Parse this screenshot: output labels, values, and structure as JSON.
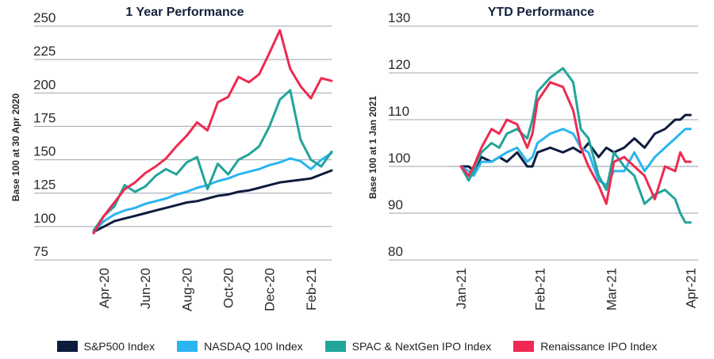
{
  "colors": {
    "sp500": "#0d1b3e",
    "nasdaq": "#2bb5f0",
    "spac": "#22a49b",
    "renaissance": "#ee2a52",
    "grid": "#9aa3ad"
  },
  "legend": [
    {
      "label": "S&P500 Index",
      "color": "#0d1b3e"
    },
    {
      "label": "NASDAQ 100 Index",
      "color": "#2bb5f0"
    },
    {
      "label": "SPAC & NextGen IPO Index",
      "color": "#22a49b"
    },
    {
      "label": "Renaissance IPO Index",
      "color": "#ee2a52"
    }
  ],
  "chart_data": [
    {
      "type": "line",
      "title": "1 Year Performance",
      "ylabel": "Base 100 at 30 Apr 2020",
      "xlabel": "",
      "ylim": [
        75,
        250
      ],
      "yticks": [
        75,
        100,
        125,
        150,
        175,
        200,
        225,
        250
      ],
      "xticks": [
        "Apr-20",
        "Jun-20",
        "Aug-20",
        "Oct-20",
        "Dec-20",
        "Feb-21"
      ],
      "xtick_pos": [
        0.5,
        2.5,
        4.5,
        6.5,
        8.5,
        10.5
      ],
      "xlim": [
        0,
        11.5
      ],
      "grid": true,
      "series": [
        {
          "name": "S&P500 Index",
          "x": [
            0,
            0.5,
            1,
            1.5,
            2,
            2.5,
            3,
            3.5,
            4,
            4.5,
            5,
            5.5,
            6,
            6.5,
            7,
            7.5,
            8,
            8.5,
            9,
            9.5,
            10,
            10.5,
            11,
            11.5
          ],
          "values": [
            96,
            100,
            104,
            106,
            108,
            110,
            112,
            114,
            116,
            118,
            119,
            121,
            123,
            124,
            126,
            127,
            129,
            131,
            133,
            134,
            135,
            136,
            139,
            142
          ]
        },
        {
          "name": "NASDAQ 100 Index",
          "x": [
            0,
            0.5,
            1,
            1.5,
            2,
            2.5,
            3,
            3.5,
            4,
            4.5,
            5,
            5.5,
            6,
            6.5,
            7,
            7.5,
            8,
            8.5,
            9,
            9.5,
            10,
            10.5,
            11,
            11.5
          ],
          "values": [
            96,
            104,
            109,
            112,
            114,
            117,
            119,
            121,
            124,
            126,
            129,
            131,
            134,
            136,
            139,
            141,
            143,
            146,
            148,
            151,
            149,
            143,
            150,
            155
          ]
        },
        {
          "name": "SPAC & NextGen IPO Index",
          "x": [
            0,
            0.5,
            1,
            1.5,
            2,
            2.5,
            3,
            3.5,
            4,
            4.5,
            5,
            5.5,
            6,
            6.5,
            7,
            7.5,
            8,
            8.5,
            9,
            9.5,
            10,
            10.5,
            11,
            11.5
          ],
          "values": [
            97,
            108,
            115,
            131,
            126,
            130,
            138,
            143,
            139,
            148,
            152,
            128,
            147,
            139,
            150,
            154,
            160,
            175,
            195,
            202,
            165,
            150,
            145,
            156
          ]
        },
        {
          "name": "Renaissance IPO Index",
          "x": [
            0,
            0.5,
            1,
            1.5,
            2,
            2.5,
            3,
            3.5,
            4,
            4.5,
            5,
            5.5,
            6,
            6.5,
            7,
            7.5,
            8,
            8.5,
            9,
            9.5,
            10,
            10.5,
            11,
            11.5
          ],
          "values": [
            95,
            108,
            118,
            128,
            133,
            140,
            145,
            151,
            160,
            168,
            178,
            172,
            193,
            197,
            212,
            208,
            214,
            230,
            247,
            218,
            205,
            196,
            211,
            209
          ]
        }
      ]
    },
    {
      "type": "line",
      "title": "YTD Performance",
      "ylabel": "Base 100 at 1 Jan 2021",
      "xlabel": "",
      "ylim": [
        80,
        130
      ],
      "yticks": [
        80,
        90,
        100,
        110,
        120,
        130
      ],
      "xticks": [
        "Jan-21",
        "Feb-21",
        "Mar-21",
        "Apr-21"
      ],
      "xtick_pos": [
        0,
        31,
        59,
        90
      ],
      "xlim": [
        -5,
        93
      ],
      "grid": true,
      "series": [
        {
          "name": "S&P500 Index",
          "x": [
            0,
            3,
            5,
            8,
            12,
            15,
            18,
            22,
            26,
            28,
            30,
            35,
            40,
            44,
            47,
            50,
            54,
            57,
            60,
            64,
            68,
            72,
            76,
            80,
            84,
            86,
            88,
            90
          ],
          "values": [
            100,
            100,
            99,
            102,
            101,
            102,
            101,
            103,
            100,
            100,
            103,
            104,
            103,
            104,
            103,
            105,
            102,
            104,
            103,
            104,
            106,
            104,
            107,
            108,
            110,
            110,
            111,
            111
          ]
        },
        {
          "name": "NASDAQ 100 Index",
          "x": [
            0,
            3,
            5,
            8,
            12,
            15,
            18,
            22,
            26,
            28,
            30,
            35,
            40,
            44,
            47,
            50,
            54,
            57,
            60,
            64,
            68,
            72,
            76,
            80,
            84,
            86,
            88,
            90
          ],
          "values": [
            100,
            99,
            98,
            101,
            101,
            102,
            103,
            104,
            101,
            102,
            105,
            107,
            108,
            107,
            104,
            103,
            97,
            96,
            99,
            99,
            103,
            99,
            102,
            104,
            106,
            107,
            108,
            108
          ]
        },
        {
          "name": "SPAC & NextGen IPO Index",
          "x": [
            0,
            3,
            5,
            8,
            12,
            15,
            18,
            22,
            26,
            28,
            30,
            35,
            40,
            44,
            47,
            50,
            54,
            57,
            60,
            64,
            68,
            72,
            76,
            80,
            84,
            86,
            88,
            90
          ],
          "values": [
            100,
            97,
            99,
            103,
            105,
            104,
            107,
            108,
            106,
            110,
            116,
            119,
            121,
            118,
            108,
            106,
            98,
            95,
            103,
            100,
            98,
            92,
            94,
            95,
            93,
            90,
            88,
            88
          ]
        },
        {
          "name": "Renaissance IPO Index",
          "x": [
            0,
            3,
            5,
            8,
            12,
            15,
            18,
            22,
            26,
            28,
            30,
            35,
            40,
            44,
            47,
            50,
            54,
            57,
            60,
            64,
            68,
            72,
            76,
            80,
            84,
            86,
            88,
            90
          ],
          "values": [
            100,
            98,
            100,
            104,
            108,
            107,
            110,
            109,
            104,
            107,
            114,
            118,
            117,
            112,
            104,
            100,
            96,
            92,
            101,
            102,
            100,
            98,
            93,
            100,
            99,
            103,
            101,
            101
          ]
        }
      ]
    }
  ]
}
